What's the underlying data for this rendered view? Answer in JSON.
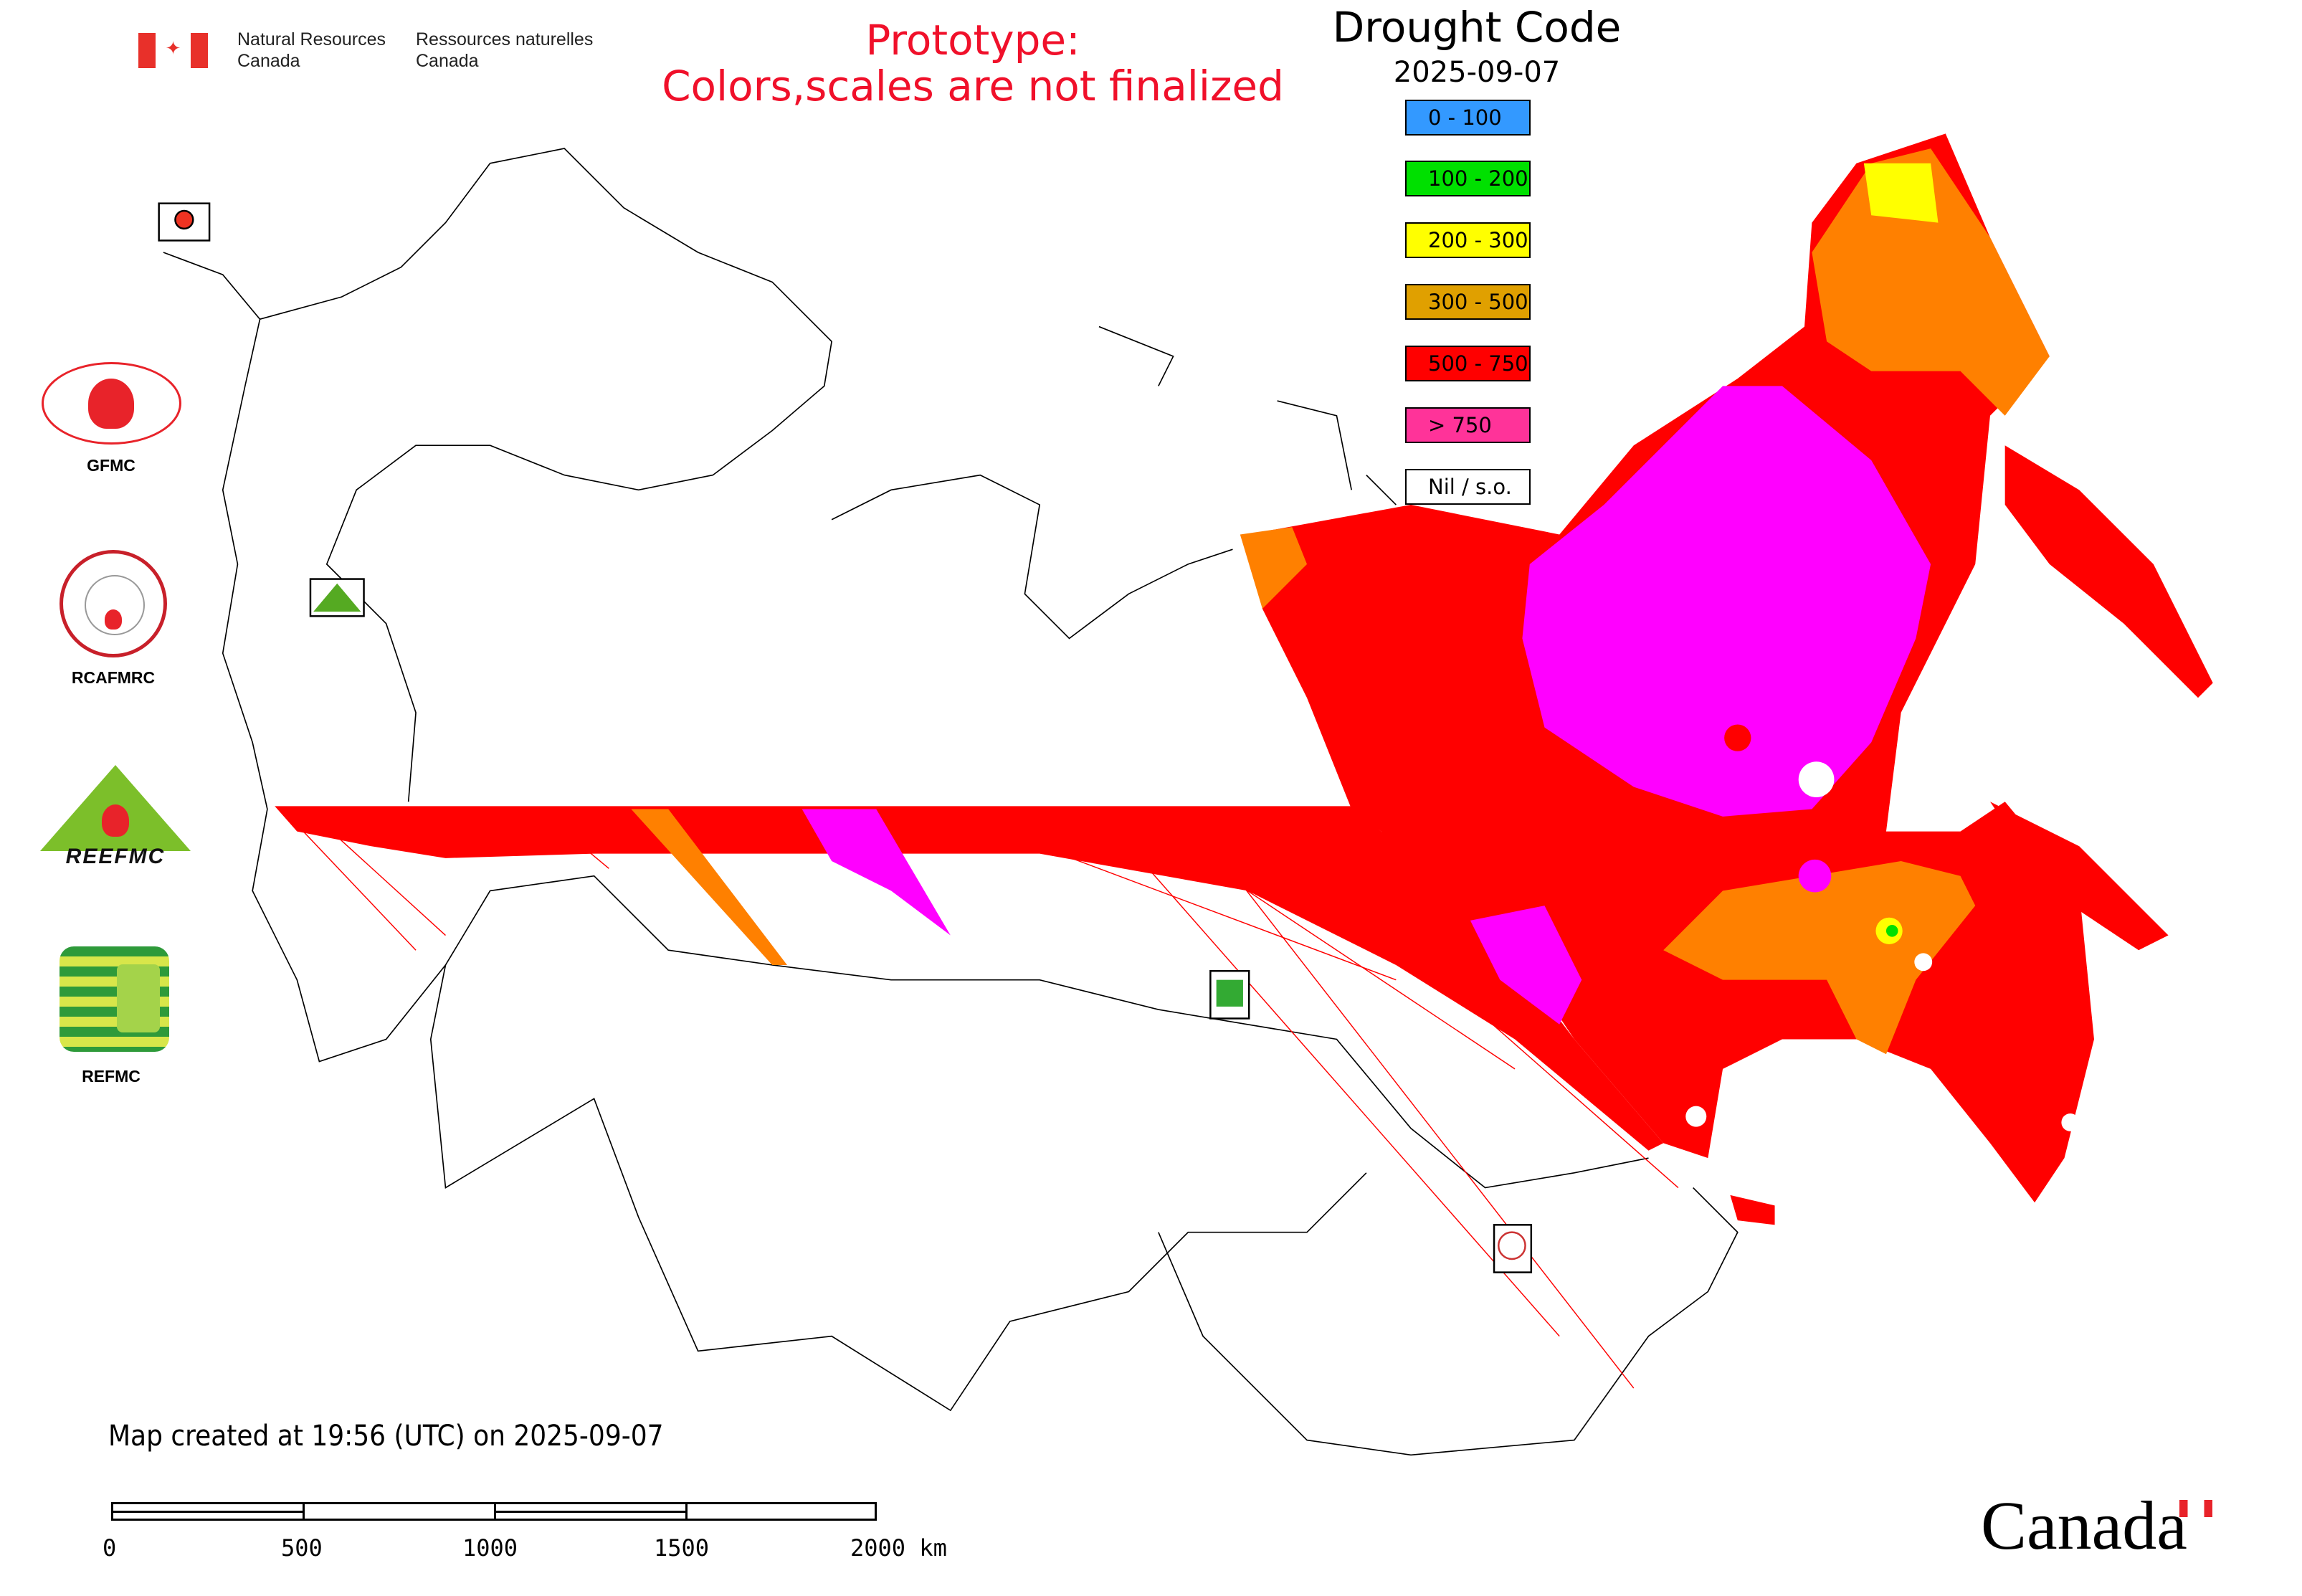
{
  "header": {
    "org_en_line1": "Natural Resources",
    "org_en_line2": "Canada",
    "org_fr_line1": "Ressources naturelles",
    "org_fr_line2": "Canada",
    "prototype_line1": "Prototype:",
    "prototype_line2": "Colors,scales are not finalized"
  },
  "legend": {
    "title": "Drought Code",
    "date": "2025-09-07",
    "items": [
      {
        "label": "0 - 100",
        "color": "#3399ff"
      },
      {
        "label": "100 - 200",
        "color": "#00e000"
      },
      {
        "label": "200 - 300",
        "color": "#ffff00"
      },
      {
        "label": "300 - 500",
        "color": "#e0a000"
      },
      {
        "label": "500 - 750",
        "color": "#ff0000"
      },
      {
        "label": "> 750",
        "color": "#ff3399"
      },
      {
        "label": "Nil / s.o.",
        "color": "#ffffff"
      }
    ]
  },
  "map_colors": {
    "red": "#ff0000",
    "magenta": "#ff00ff",
    "orange": "#ff8000",
    "yellow": "#ffff00",
    "green": "#00e000"
  },
  "logos": [
    {
      "label": "GFMC"
    },
    {
      "label": "RCAFMRC"
    },
    {
      "label": "REEFMC"
    },
    {
      "label": "REFMC"
    }
  ],
  "footer": {
    "created": "Map created at 19:56 (UTC) on 2025-09-07",
    "scale_labels": [
      "0",
      "500",
      "1000",
      "1500",
      "2000 km"
    ]
  },
  "wordmark": "Canada"
}
